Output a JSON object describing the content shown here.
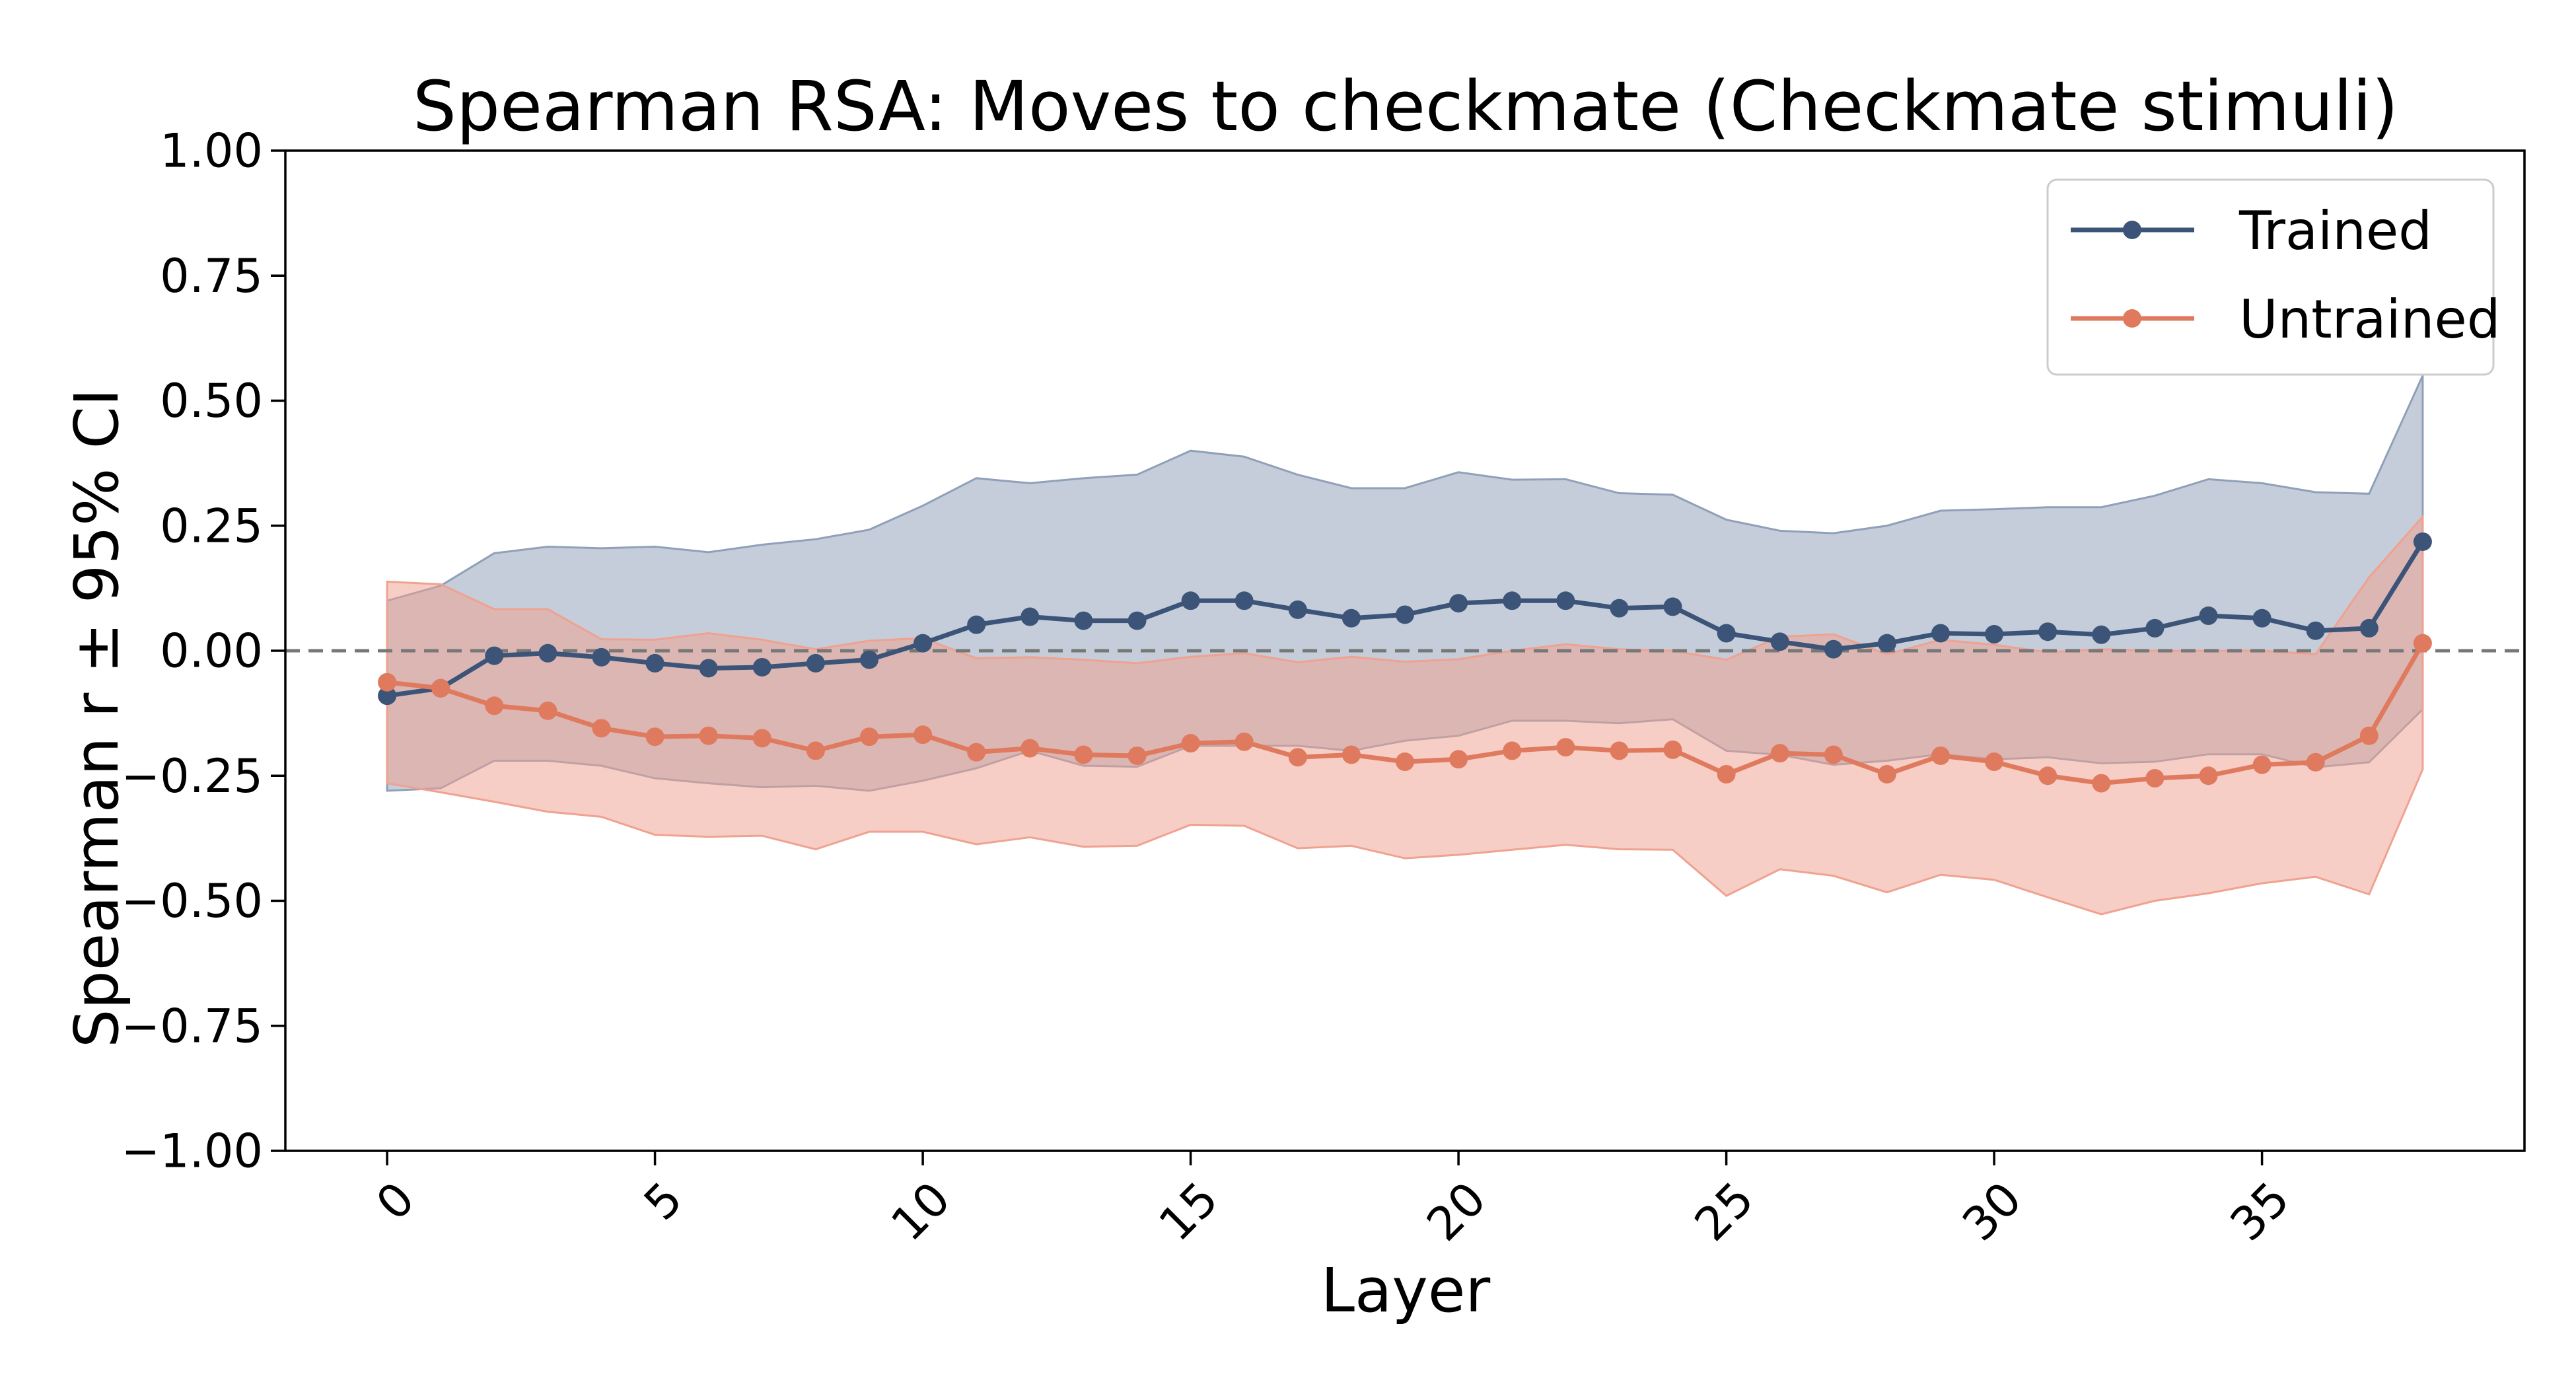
{
  "chart_data": {
    "type": "line",
    "title": "Spearman RSA: Moves to checkmate (Checkmate stimuli)",
    "xlabel": "Layer",
    "ylabel": "Spearman r ± 95% CI",
    "xlim": [
      -1.9,
      39.9
    ],
    "ylim": [
      -1.0,
      1.0
    ],
    "x_ticks": [
      0,
      5,
      10,
      15,
      20,
      25,
      30,
      35
    ],
    "x_tick_labels": [
      "0",
      "5",
      "10",
      "15",
      "20",
      "25",
      "30",
      "35"
    ],
    "y_ticks": [
      -1.0,
      -0.75,
      -0.5,
      -0.25,
      0.0,
      0.25,
      0.5,
      0.75,
      1.0
    ],
    "y_tick_labels": [
      "−1.00",
      "−0.75",
      "−0.50",
      "−0.25",
      "0.00",
      "0.25",
      "0.50",
      "0.75",
      "1.00"
    ],
    "reference_line": 0.0,
    "legend_position": "top-right",
    "grid": false,
    "x": [
      0,
      1,
      2,
      3,
      4,
      5,
      6,
      7,
      8,
      9,
      10,
      11,
      12,
      13,
      14,
      15,
      16,
      17,
      18,
      19,
      20,
      21,
      22,
      23,
      24,
      25,
      26,
      27,
      28,
      29,
      30,
      31,
      32,
      33,
      34,
      35,
      36,
      37,
      38
    ],
    "series": [
      {
        "name": "Trained",
        "color": "#3b5478",
        "band_color": "#8fa0b8",
        "values": [
          -0.09,
          -0.075,
          -0.01,
          -0.005,
          -0.013,
          -0.025,
          -0.035,
          -0.033,
          -0.025,
          -0.018,
          0.015,
          0.052,
          0.068,
          0.06,
          0.06,
          0.1,
          0.1,
          0.082,
          0.065,
          0.072,
          0.095,
          0.1,
          0.1,
          0.085,
          0.088,
          0.035,
          0.018,
          0.003,
          0.015,
          0.035,
          0.033,
          0.038,
          0.032,
          0.045,
          0.07,
          0.065,
          0.04,
          0.045,
          0.218
        ],
        "ci_upper": [
          0.1,
          0.13,
          0.195,
          0.208,
          0.205,
          0.208,
          0.197,
          0.212,
          0.223,
          0.242,
          0.29,
          0.345,
          0.335,
          0.345,
          0.352,
          0.4,
          0.388,
          0.352,
          0.325,
          0.325,
          0.357,
          0.342,
          0.343,
          0.315,
          0.312,
          0.262,
          0.24,
          0.235,
          0.25,
          0.28,
          0.283,
          0.287,
          0.287,
          0.31,
          0.343,
          0.335,
          0.317,
          0.314,
          0.55
        ],
        "ci_lower": [
          -0.28,
          -0.275,
          -0.22,
          -0.22,
          -0.23,
          -0.255,
          -0.265,
          -0.273,
          -0.27,
          -0.28,
          -0.26,
          -0.235,
          -0.2,
          -0.23,
          -0.232,
          -0.19,
          -0.19,
          -0.19,
          -0.2,
          -0.18,
          -0.17,
          -0.14,
          -0.14,
          -0.145,
          -0.137,
          -0.2,
          -0.208,
          -0.228,
          -0.22,
          -0.207,
          -0.217,
          -0.213,
          -0.225,
          -0.222,
          -0.207,
          -0.207,
          -0.233,
          -0.223,
          -0.117
        ]
      },
      {
        "name": "Untrained",
        "color": "#e07a5f",
        "band_color": "#efa290",
        "values": [
          -0.063,
          -0.075,
          -0.11,
          -0.12,
          -0.155,
          -0.172,
          -0.17,
          -0.175,
          -0.2,
          -0.172,
          -0.168,
          -0.203,
          -0.195,
          -0.208,
          -0.21,
          -0.185,
          -0.182,
          -0.213,
          -0.208,
          -0.222,
          -0.217,
          -0.2,
          -0.193,
          -0.2,
          -0.198,
          -0.247,
          -0.205,
          -0.208,
          -0.247,
          -0.21,
          -0.222,
          -0.25,
          -0.265,
          -0.255,
          -0.25,
          -0.228,
          -0.223,
          -0.17,
          0.015
        ],
        "ci_upper": [
          0.138,
          0.133,
          0.083,
          0.083,
          0.023,
          0.022,
          0.035,
          0.022,
          0.003,
          0.02,
          0.025,
          -0.015,
          -0.013,
          -0.018,
          -0.025,
          -0.012,
          -0.005,
          -0.023,
          -0.012,
          -0.022,
          -0.017,
          0.0,
          0.013,
          0.003,
          0.0,
          -0.018,
          0.028,
          0.033,
          -0.007,
          0.022,
          0.012,
          -0.003,
          0.003,
          0.0,
          0.0,
          0.0,
          -0.007,
          0.147,
          0.268
        ],
        "ci_lower": [
          -0.265,
          -0.283,
          -0.302,
          -0.322,
          -0.332,
          -0.368,
          -0.372,
          -0.37,
          -0.397,
          -0.362,
          -0.362,
          -0.387,
          -0.373,
          -0.392,
          -0.39,
          -0.348,
          -0.35,
          -0.395,
          -0.39,
          -0.415,
          -0.408,
          -0.398,
          -0.388,
          -0.397,
          -0.398,
          -0.49,
          -0.437,
          -0.45,
          -0.483,
          -0.448,
          -0.458,
          -0.493,
          -0.527,
          -0.5,
          -0.485,
          -0.465,
          -0.452,
          -0.487,
          -0.237
        ]
      }
    ]
  }
}
